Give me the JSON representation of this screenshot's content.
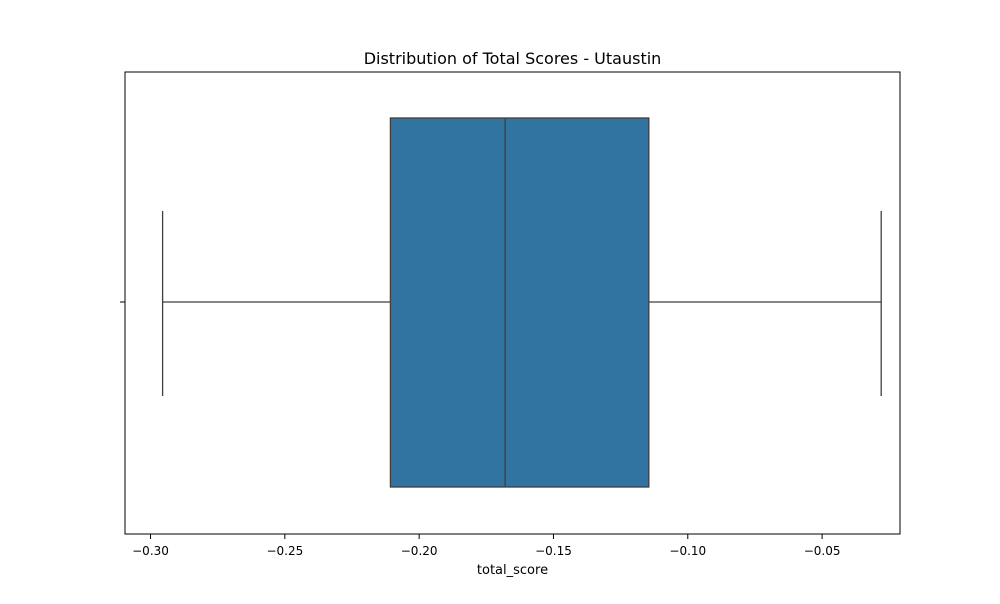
{
  "chart_data": {
    "type": "box",
    "title": "Distribution of Total Scores - Utaustin",
    "xlabel": "total_score",
    "ylabel": "",
    "xlim": [
      -0.3095,
      -0.021
    ],
    "xticks": [
      -0.3,
      -0.25,
      -0.2,
      -0.15,
      -0.1,
      -0.05
    ],
    "xtick_labels": [
      "−0.30",
      "−0.25",
      "−0.20",
      "−0.15",
      "−0.10",
      "−0.05"
    ],
    "yticks": [
      ""
    ],
    "box": {
      "whisker_low": -0.2955,
      "q1": -0.2107,
      "median": -0.168,
      "q3": -0.1145,
      "whisker_high": -0.028
    },
    "colors": {
      "box_fill": "#3274a1",
      "line": "#3f3f3f",
      "axes": "#000000"
    },
    "grid": false,
    "legend": "none"
  }
}
